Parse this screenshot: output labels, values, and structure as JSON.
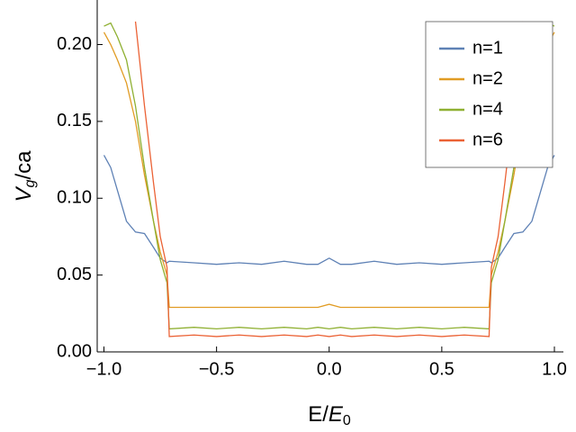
{
  "chart_data": {
    "type": "line",
    "xlabel": [
      "E/",
      "E",
      "0"
    ],
    "ylabel": [
      "V",
      "g",
      "/ca"
    ],
    "x": [
      -1,
      -0.97,
      -0.94,
      -0.9,
      -0.86,
      -0.82,
      -0.78,
      -0.75,
      -0.72,
      -0.71,
      -0.6,
      -0.5,
      -0.4,
      -0.3,
      -0.2,
      -0.1,
      -0.05,
      0,
      0.05,
      0.1,
      0.2,
      0.3,
      0.4,
      0.5,
      0.6,
      0.71,
      0.72,
      0.75,
      0.78,
      0.82,
      0.86,
      0.9,
      0.94,
      0.97,
      1
    ],
    "series": [
      {
        "name": "n=1",
        "color": "#5e81b5",
        "values": [
          0.128,
          0.12,
          0.105,
          0.085,
          0.078,
          0.077,
          0.068,
          0.061,
          0.058,
          0.059,
          0.058,
          0.057,
          0.058,
          0.057,
          0.059,
          0.057,
          0.057,
          0.061,
          0.057,
          0.057,
          0.059,
          0.057,
          0.058,
          0.057,
          0.058,
          0.059,
          0.058,
          0.061,
          0.068,
          0.077,
          0.078,
          0.085,
          0.105,
          0.12,
          0.128
        ]
      },
      {
        "name": "n=2",
        "color": "#e19c24",
        "values": [
          0.208,
          0.2,
          0.19,
          0.175,
          0.15,
          0.115,
          0.085,
          0.065,
          0.05,
          0.029,
          0.029,
          0.029,
          0.029,
          0.029,
          0.029,
          0.029,
          0.029,
          0.031,
          0.029,
          0.029,
          0.029,
          0.029,
          0.029,
          0.029,
          0.029,
          0.029,
          0.05,
          0.065,
          0.085,
          0.115,
          0.15,
          0.175,
          0.19,
          0.2,
          0.208
        ]
      },
      {
        "name": "n=4",
        "color": "#8fb032",
        "values": [
          0.212,
          0.214,
          0.205,
          0.19,
          0.16,
          0.12,
          0.085,
          0.06,
          0.045,
          0.015,
          0.016,
          0.015,
          0.016,
          0.015,
          0.016,
          0.015,
          0.016,
          0.015,
          0.016,
          0.015,
          0.016,
          0.015,
          0.016,
          0.015,
          0.016,
          0.015,
          0.045,
          0.06,
          0.085,
          0.12,
          0.16,
          0.19,
          0.205,
          0.214,
          0.212
        ]
      },
      {
        "name": "n=6",
        "color": "#eb6235",
        "values": [
          null,
          null,
          null,
          null,
          0.215,
          0.16,
          0.11,
          0.075,
          0.055,
          0.01,
          0.011,
          0.01,
          0.011,
          0.01,
          0.011,
          0.01,
          0.011,
          0.01,
          0.011,
          0.01,
          0.011,
          0.01,
          0.011,
          0.01,
          0.011,
          0.01,
          0.055,
          0.075,
          0.11,
          0.16,
          0.215,
          null,
          null,
          null,
          null
        ]
      }
    ],
    "xlim": [
      -1.03,
      1.04
    ],
    "ylim": [
      0,
      0.229
    ],
    "xticks": [
      {
        "value": -1,
        "label": "−1.0"
      },
      {
        "value": -0.5,
        "label": "−0.5"
      },
      {
        "value": 0,
        "label": "0.0"
      },
      {
        "value": 0.5,
        "label": "0.5"
      },
      {
        "value": 1,
        "label": "1.0"
      }
    ],
    "yticks": [
      {
        "value": 0,
        "label": "0.00"
      },
      {
        "value": 0.05,
        "label": "0.05"
      },
      {
        "value": 0.1,
        "label": "0.10"
      },
      {
        "value": 0.15,
        "label": "0.15"
      },
      {
        "value": 0.2,
        "label": "0.20"
      }
    ],
    "legend": "top-right"
  }
}
